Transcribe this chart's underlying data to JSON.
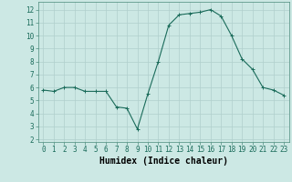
{
  "hours": [
    0,
    1,
    2,
    3,
    4,
    5,
    6,
    7,
    8,
    9,
    10,
    11,
    12,
    13,
    14,
    15,
    16,
    17,
    18,
    19,
    20,
    21,
    22,
    23
  ],
  "values": [
    5.8,
    5.7,
    6.0,
    6.0,
    5.7,
    5.7,
    5.7,
    4.5,
    4.4,
    2.8,
    5.5,
    8.0,
    10.8,
    11.6,
    11.7,
    11.8,
    12.0,
    11.5,
    10.0,
    8.2,
    7.4,
    6.0,
    5.8,
    5.4
  ],
  "line_color": "#1a6b5a",
  "marker": "+",
  "bg_color": "#cce8e4",
  "grid_color": "#b0cfcc",
  "xlabel": "Humidex (Indice chaleur)",
  "ylim": [
    1.8,
    12.6
  ],
  "xlim": [
    -0.5,
    23.5
  ],
  "yticks": [
    2,
    3,
    4,
    5,
    6,
    7,
    8,
    9,
    10,
    11,
    12
  ],
  "xticks": [
    0,
    1,
    2,
    3,
    4,
    5,
    6,
    7,
    8,
    9,
    10,
    11,
    12,
    13,
    14,
    15,
    16,
    17,
    18,
    19,
    20,
    21,
    22,
    23
  ],
  "tick_fontsize": 5.5,
  "xlabel_fontsize": 7.0
}
